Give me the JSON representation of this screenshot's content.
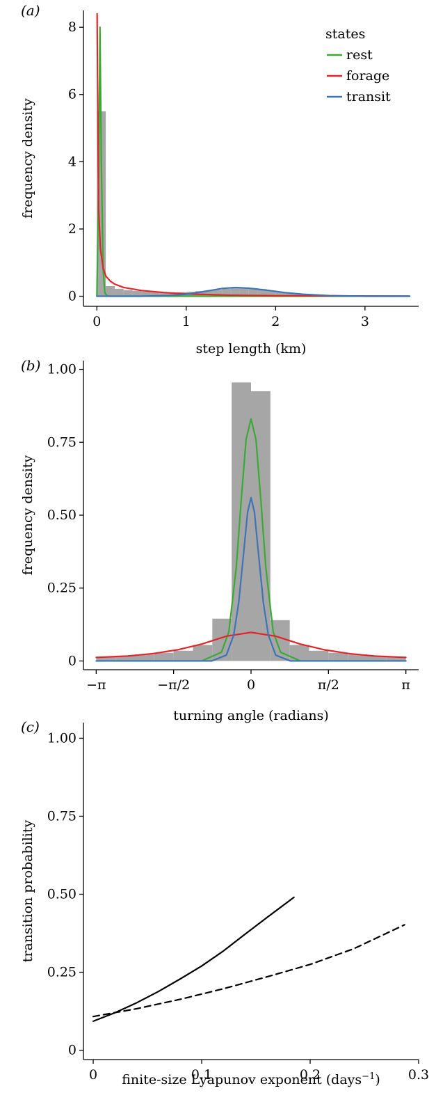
{
  "colors": {
    "rest": "#3aaa35",
    "forage": "#e1252b",
    "transit": "#3c74b6",
    "histogram": "#a6a6a6",
    "line": "#000000"
  },
  "chart_data": [
    {
      "panel": "(a)",
      "panel_letter": "a",
      "type": "histogram+density",
      "xlabel": "step length (km)",
      "ylabel": "frequency density",
      "xlim": [
        -0.15,
        3.6
      ],
      "ylim": [
        -0.3,
        8.5
      ],
      "xticks": [
        0,
        1,
        2,
        3
      ],
      "xtick_labels": [
        "0",
        "1",
        "2",
        "3"
      ],
      "yticks": [
        0,
        2,
        4,
        6,
        8
      ],
      "ytick_labels": [
        "0",
        "2",
        "4",
        "6",
        "8"
      ],
      "legend": {
        "title": "states",
        "position": "top-right",
        "entries": [
          {
            "name": "rest",
            "color": "#3aaa35"
          },
          {
            "name": "forage",
            "color": "#e1252b"
          },
          {
            "name": "transit",
            "color": "#3c74b6"
          }
        ]
      },
      "histogram": {
        "bin_width": 0.1,
        "bin_starts": [
          0.0,
          0.1,
          0.2,
          0.3,
          0.4,
          0.5,
          0.6,
          0.7,
          0.8,
          0.9,
          1.0,
          1.1,
          1.2,
          1.3,
          1.4,
          1.5,
          1.6,
          1.7,
          1.8,
          1.9,
          2.0,
          2.1,
          2.2,
          2.3,
          2.4,
          2.5,
          2.6,
          2.7,
          2.8,
          2.9,
          3.0
        ],
        "densities": [
          5.5,
          0.3,
          0.22,
          0.18,
          0.16,
          0.14,
          0.13,
          0.12,
          0.11,
          0.12,
          0.13,
          0.15,
          0.17,
          0.19,
          0.22,
          0.25,
          0.26,
          0.24,
          0.21,
          0.17,
          0.13,
          0.1,
          0.07,
          0.05,
          0.03,
          0.02,
          0.01,
          0.01,
          0.0,
          0.0,
          0.0
        ]
      },
      "series": [
        {
          "name": "rest",
          "x": [
            0.0,
            0.02,
            0.035,
            0.05,
            0.07,
            0.09,
            0.12,
            0.2,
            3.5
          ],
          "y": [
            0.0,
            3.5,
            8.0,
            4.0,
            0.8,
            0.1,
            0.0,
            0.0,
            0.0
          ]
        },
        {
          "name": "forage",
          "x": [
            0.003,
            0.01,
            0.02,
            0.04,
            0.07,
            0.1,
            0.15,
            0.2,
            0.3,
            0.5,
            0.75,
            1.0,
            1.5,
            2.0,
            3.5
          ],
          "y": [
            8.4,
            5.5,
            2.6,
            1.4,
            0.85,
            0.6,
            0.45,
            0.36,
            0.26,
            0.17,
            0.11,
            0.07,
            0.03,
            0.015,
            0.002
          ]
        },
        {
          "name": "transit",
          "x": [
            0.0,
            0.5,
            0.8,
            1.0,
            1.2,
            1.4,
            1.55,
            1.7,
            1.9,
            2.1,
            2.3,
            2.6,
            3.0,
            3.5
          ],
          "y": [
            0.0,
            0.0,
            0.02,
            0.06,
            0.14,
            0.23,
            0.26,
            0.24,
            0.18,
            0.11,
            0.06,
            0.02,
            0.0,
            0.0
          ]
        }
      ]
    },
    {
      "panel": "(b)",
      "panel_letter": "b",
      "type": "histogram+density",
      "xlabel": "turning angle (radians)",
      "ylabel": "frequency density",
      "xlim": [
        -3.4,
        3.4
      ],
      "ylim": [
        -0.03,
        1.03
      ],
      "xticks": [
        -3.14159,
        -1.5708,
        0,
        1.5708,
        3.14159
      ],
      "xtick_labels": [
        "−π",
        "−π/2",
        "0",
        "π/2",
        "π"
      ],
      "yticks": [
        0,
        0.25,
        0.5,
        0.75,
        1.0
      ],
      "ytick_labels": [
        "0",
        "0.25",
        "0.50",
        "0.75",
        "1.00"
      ],
      "histogram": {
        "bin_width": 0.3927,
        "bin_starts": [
          -3.14159,
          -2.74889,
          -2.35619,
          -1.9635,
          -1.5708,
          -1.1781,
          -0.7854,
          -0.3927,
          0.0,
          0.3927,
          0.7854,
          1.1781,
          1.5708,
          1.9635,
          2.35619,
          2.74889
        ],
        "densities": [
          0.015,
          0.018,
          0.022,
          0.028,
          0.035,
          0.055,
          0.145,
          0.955,
          0.925,
          0.14,
          0.055,
          0.035,
          0.028,
          0.022,
          0.018,
          0.015
        ]
      },
      "series": [
        {
          "name": "rest",
          "x": [
            -3.14,
            -1.0,
            -0.6,
            -0.45,
            -0.3,
            -0.2,
            -0.1,
            0.0,
            0.1,
            0.2,
            0.3,
            0.45,
            0.6,
            1.0,
            3.14
          ],
          "y": [
            0.0,
            0.0,
            0.03,
            0.1,
            0.32,
            0.55,
            0.76,
            0.83,
            0.76,
            0.55,
            0.32,
            0.1,
            0.03,
            0.0,
            0.0
          ]
        },
        {
          "name": "forage",
          "x": [
            -3.14,
            -2.5,
            -2.0,
            -1.5,
            -1.0,
            -0.5,
            0.0,
            0.5,
            1.0,
            1.5,
            2.0,
            2.5,
            3.14
          ],
          "y": [
            0.012,
            0.017,
            0.025,
            0.038,
            0.058,
            0.085,
            0.098,
            0.085,
            0.058,
            0.038,
            0.025,
            0.017,
            0.012
          ]
        },
        {
          "name": "transit",
          "x": [
            -3.14,
            -0.8,
            -0.5,
            -0.35,
            -0.25,
            -0.15,
            -0.07,
            0.0,
            0.07,
            0.15,
            0.25,
            0.35,
            0.5,
            0.8,
            3.14
          ],
          "y": [
            0.0,
            0.0,
            0.02,
            0.09,
            0.2,
            0.37,
            0.51,
            0.56,
            0.51,
            0.37,
            0.2,
            0.09,
            0.02,
            0.0,
            0.0
          ]
        }
      ]
    },
    {
      "panel": "(c)",
      "panel_letter": "c",
      "type": "line",
      "xlabel": "finite-size Lyapunov exponent (days",
      "xlabel_sup": "−1",
      "xlabel_end": ")",
      "ylabel": "transition probability",
      "xlim": [
        -0.009,
        0.3
      ],
      "ylim": [
        -0.03,
        1.05
      ],
      "xticks": [
        0,
        0.1,
        0.2,
        0.3
      ],
      "xtick_labels": [
        "0",
        "0.1",
        "0.2",
        "0.3"
      ],
      "yticks": [
        0,
        0.25,
        0.5,
        0.75,
        1.0
      ],
      "ytick_labels": [
        "0",
        "0.25",
        "0.50",
        "0.75",
        "1.00"
      ],
      "series": [
        {
          "style": "solid",
          "x": [
            0.0,
            0.02,
            0.04,
            0.06,
            0.08,
            0.1,
            0.12,
            0.14,
            0.16,
            0.185
          ],
          "y": [
            0.093,
            0.12,
            0.152,
            0.188,
            0.228,
            0.27,
            0.318,
            0.372,
            0.425,
            0.49
          ]
        },
        {
          "style": "dashed",
          "x": [
            0.0,
            0.04,
            0.08,
            0.12,
            0.16,
            0.2,
            0.24,
            0.287
          ],
          "y": [
            0.108,
            0.133,
            0.163,
            0.197,
            0.235,
            0.275,
            0.325,
            0.402
          ]
        }
      ]
    }
  ]
}
